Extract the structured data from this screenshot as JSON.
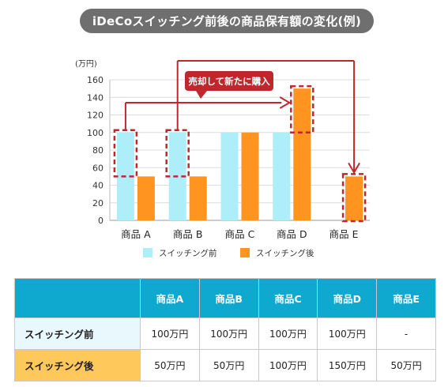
{
  "title": "iDeCoスイッチング前後の商品保有額の変化(例)",
  "chart_data": {
    "type": "bar",
    "unit_label": "(万円)",
    "categories": [
      "商品 A",
      "商品 B",
      "商品 C",
      "商品 D",
      "商品 E"
    ],
    "series": [
      {
        "name": "スイッチング前",
        "values": [
          100,
          100,
          100,
          100,
          0
        ],
        "color": "#aeeef8"
      },
      {
        "name": "スイッチング後",
        "values": [
          50,
          50,
          100,
          150,
          50
        ],
        "color": "#ff9420"
      }
    ],
    "ylim": [
      0,
      160
    ],
    "yticks": [
      0,
      20,
      40,
      60,
      80,
      100,
      120,
      140,
      160
    ],
    "grid": true,
    "legend": "bottom",
    "annotation": "売却して新たに購入",
    "highlight_color": "#c0272d"
  },
  "table": {
    "headers": [
      "",
      "商品A",
      "商品B",
      "商品C",
      "商品D",
      "商品E"
    ],
    "rows": [
      {
        "label": "スイッチング前",
        "cells": [
          "100万円",
          "100万円",
          "100万円",
          "100万円",
          "-"
        ]
      },
      {
        "label": "スイッチング後",
        "cells": [
          "50万円",
          "50万円",
          "100万円",
          "150万円",
          "50万円"
        ]
      }
    ]
  }
}
